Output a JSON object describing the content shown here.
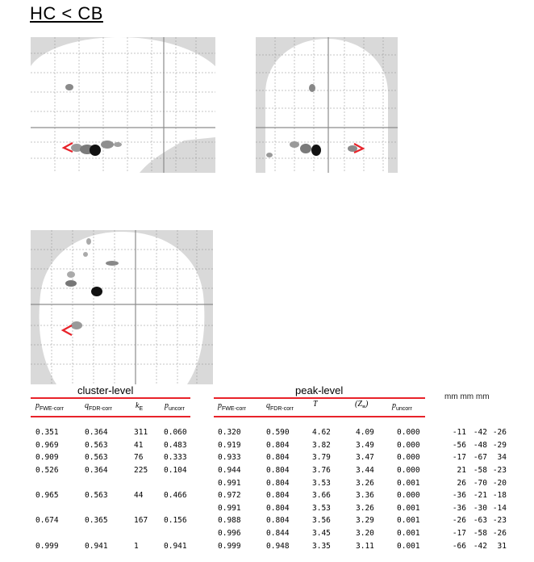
{
  "title": "HC < CB",
  "headers": {
    "cluster_level": "cluster-level",
    "peak_level": "peak-level",
    "coords": "mm mm mm"
  },
  "columns": {
    "p_fwe_cluster": {
      "sym": "p",
      "sub": "FWE-corr"
    },
    "q_fdr_cluster": {
      "sym": "q",
      "sub": "FDR-corr"
    },
    "k_e": {
      "sym": "k",
      "sub": "E"
    },
    "p_unc_cluster": {
      "sym": "p",
      "sub": "uncorr"
    },
    "p_fwe_peak": {
      "sym": "p",
      "sub": "FWE-corr"
    },
    "q_fdr_peak": {
      "sym": "q",
      "sub": "FDR-corr"
    },
    "t": {
      "sym": "T",
      "sub": ""
    },
    "z": {
      "sym": "(Z",
      "sub": "≡",
      "close": ")"
    },
    "p_unc_peak": {
      "sym": "p",
      "sub": "uncorr"
    }
  },
  "rows": [
    [
      "0.351",
      "0.364",
      "311",
      "0.060",
      "0.320",
      "0.590",
      "4.62",
      "4.09",
      "0.000",
      "-11",
      "-42",
      "-26"
    ],
    [
      "0.969",
      "0.563",
      "41",
      "0.483",
      "0.919",
      "0.804",
      "3.82",
      "3.49",
      "0.000",
      "-56",
      "-48",
      "-29"
    ],
    [
      "0.909",
      "0.563",
      "76",
      "0.333",
      "0.933",
      "0.804",
      "3.79",
      "3.47",
      "0.000",
      "-17",
      "-67",
      "34"
    ],
    [
      "0.526",
      "0.364",
      "225",
      "0.104",
      "0.944",
      "0.804",
      "3.76",
      "3.44",
      "0.000",
      "21",
      "-58",
      "-23"
    ],
    [
      "",
      "",
      "",
      "",
      "0.991",
      "0.804",
      "3.53",
      "3.26",
      "0.001",
      "26",
      "-70",
      "-20"
    ],
    [
      "0.965",
      "0.563",
      "44",
      "0.466",
      "0.972",
      "0.804",
      "3.66",
      "3.36",
      "0.000",
      "-36",
      "-21",
      "-18"
    ],
    [
      "",
      "",
      "",
      "",
      "0.991",
      "0.804",
      "3.53",
      "3.26",
      "0.001",
      "-36",
      "-30",
      "-14"
    ],
    [
      "0.674",
      "0.365",
      "167",
      "0.156",
      "0.988",
      "0.804",
      "3.56",
      "3.29",
      "0.001",
      "-26",
      "-63",
      "-23"
    ],
    [
      "",
      "",
      "",
      "",
      "0.996",
      "0.844",
      "3.45",
      "3.20",
      "0.001",
      "-17",
      "-58",
      "-26"
    ],
    [
      "0.999",
      "0.941",
      "1",
      "0.941",
      "0.999",
      "0.948",
      "3.35",
      "3.11",
      "0.001",
      "-66",
      "-42",
      "31"
    ]
  ],
  "colors": {
    "accent_red": "#e8232a",
    "glass_bg": "#d9d9d9"
  }
}
